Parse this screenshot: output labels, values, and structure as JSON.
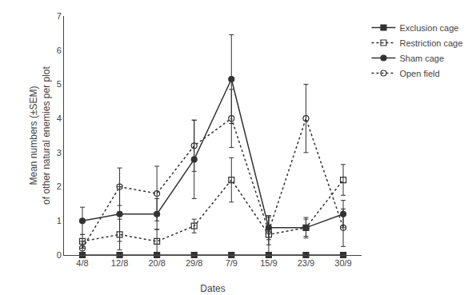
{
  "chart_data": {
    "type": "line",
    "categories": [
      "4/8",
      "12/8",
      "20/8",
      "29/8",
      "7/9",
      "15/9",
      "23/9",
      "30/9"
    ],
    "xlabel": "Dates",
    "ylabel": "Mean numbers (±SEM)\nof other natural enemies per plot",
    "ylim": [
      0,
      7
    ],
    "yticks": [
      0,
      1,
      2,
      3,
      4,
      5,
      6,
      7
    ],
    "grid": false,
    "legend": "right",
    "series": [
      {
        "name": "Exclusion cage",
        "color": "#333333",
        "marker": "square",
        "line_style": "solid",
        "values": [
          0.0,
          0.0,
          0.0,
          0.0,
          0.0,
          0.0,
          0.0,
          0.0
        ],
        "error": [
          0.0,
          0.0,
          0.0,
          0.0,
          0.0,
          0.0,
          0.0,
          0.0
        ]
      },
      {
        "name": "Restriction cage",
        "color": "#333333",
        "marker": "square-open",
        "line_style": "dotted",
        "values": [
          0.4,
          0.6,
          0.4,
          0.85,
          2.2,
          0.6,
          0.8,
          2.2
        ],
        "error": [
          0.2,
          0.45,
          0.35,
          0.2,
          0.65,
          0.55,
          0.25,
          0.45
        ]
      },
      {
        "name": "Sham cage",
        "color": "#333333",
        "marker": "circle",
        "line_style": "solid",
        "values": [
          1.0,
          1.2,
          1.2,
          2.8,
          5.15,
          0.8,
          0.8,
          1.2
        ],
        "error": [
          0.4,
          0.8,
          0.45,
          1.15,
          1.3,
          0.35,
          0.3,
          0.4
        ]
      },
      {
        "name": "Open field",
        "color": "#333333",
        "marker": "circle-open",
        "line_style": "dotted",
        "values": [
          0.2,
          2.0,
          1.8,
          3.2,
          4.0,
          0.7,
          4.0,
          0.8
        ],
        "error": [
          0.2,
          0.55,
          0.8,
          0.75,
          0.85,
          0.4,
          1.0,
          0.55
        ]
      }
    ]
  }
}
